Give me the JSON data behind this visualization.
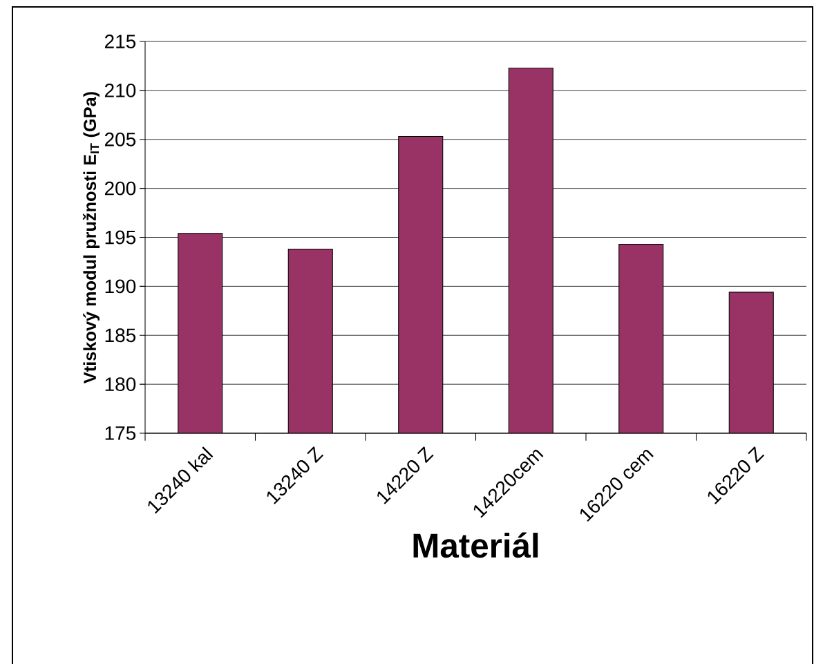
{
  "chart_data": {
    "type": "bar",
    "xlabel": "Materiál",
    "ylabel": "Vtiskový modul pružnosti E$_{IT}$ (GPa)",
    "categories": [
      "13240 kal",
      "13240 Z",
      "14220 Z",
      "14220cem",
      "16220 cem",
      "16220 Z"
    ],
    "values": [
      195.4,
      193.8,
      205.3,
      212.3,
      194.3,
      189.4
    ],
    "color": "#993366",
    "ylim": [
      175,
      215
    ],
    "yticks": [
      175,
      180,
      185,
      190,
      195,
      200,
      205,
      210,
      215
    ],
    "grid": "y"
  }
}
